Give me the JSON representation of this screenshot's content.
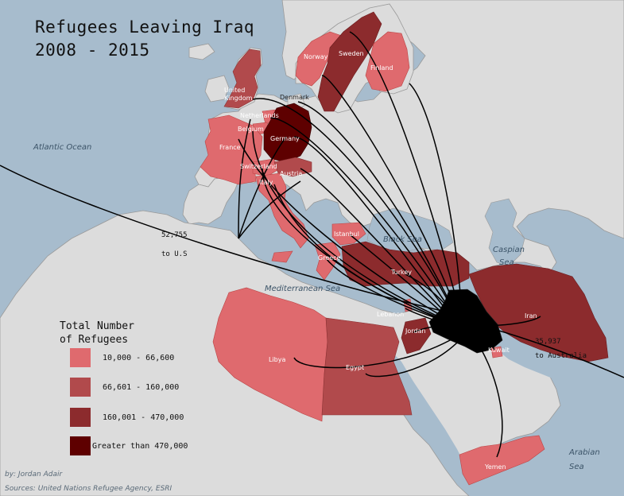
{
  "title": {
    "line1": "Refugees Leaving Iraq",
    "line2": "2008 - 2015"
  },
  "colors": {
    "water": "#a7bccd",
    "land": "#dcdcdc",
    "border": "#9a9a9a",
    "class1": "#df6a6e",
    "class2": "#b14a4c",
    "class3": "#8c2b2d",
    "class4": "#5e0000",
    "origin": "#000000"
  },
  "legend": {
    "title_line1": "Total Number",
    "title_line2": "of Refugees",
    "classes": [
      {
        "label": "10,000 - 66,600",
        "color": "#df6a6e"
      },
      {
        "label": "66,601 - 160,000",
        "color": "#b14a4c"
      },
      {
        "label": "160,001 - 470,000",
        "color": "#8c2b2d"
      },
      {
        "label": "Greater than 470,000",
        "color": "#5e0000"
      }
    ]
  },
  "water_labels": {
    "atlantic": "Atlantic Ocean",
    "black_sea": "Black Sea",
    "caspian_line1": "Caspian",
    "caspian_line2": "Sea",
    "mediterranean": "Mediterranean Sea",
    "arabian_line1": "Arabian",
    "arabian_line2": "Sea"
  },
  "countries": {
    "norway": "Norway",
    "sweden": "Sweden",
    "finland": "Finland",
    "uk_line1": "United",
    "uk_line2": "Kingdom",
    "denmark": "Denmark",
    "netherlands": "Netherlands",
    "belgium": "Belgium",
    "germany": "Germany",
    "france": "France",
    "switzerland": "Switzerland",
    "austria": "Austria",
    "italy": "Italy",
    "istanbul": "Istanbul",
    "greece": "Greece",
    "turkey": "Turkey",
    "lebanon": "Lebanon",
    "jordan": "Jordan",
    "iran": "Iran",
    "kuwait": "Kuwait",
    "libya": "Libya",
    "egypt": "Egypt",
    "yemen": "Yemen"
  },
  "flows": {
    "us_value": "52,755",
    "us_label": "to U.S",
    "australia_value": "35,937",
    "australia_label": "to Australia"
  },
  "credits": {
    "author": "by: Jordan Adair",
    "sources": "Sources: United Nations Refugee Agency, ESRI"
  }
}
